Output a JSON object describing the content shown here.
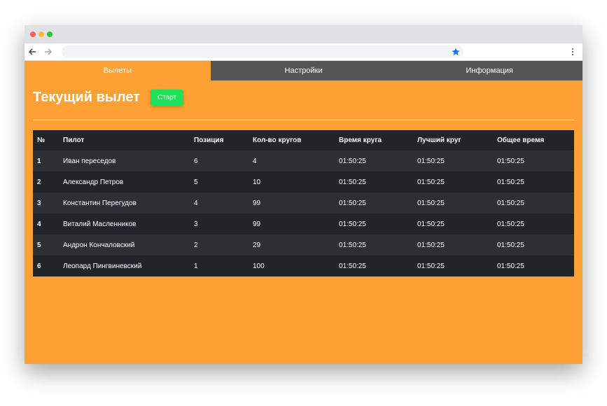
{
  "tabs": [
    "Вылеты",
    "Настройки",
    "Информация"
  ],
  "heading": "Текущий вылет",
  "button": "Старт",
  "table": {
    "headers": [
      "№",
      "Пилот",
      "Позиция",
      "Кол-во кругов",
      "Время круга",
      "Лучший круг",
      "Общее время"
    ],
    "rows": [
      [
        "1",
        "Иван переседов",
        "6",
        "4",
        "01:50:25",
        "01:50:25",
        "01:50:25"
      ],
      [
        "2",
        "Александр Петров",
        "5",
        "10",
        "01:50:25",
        "01:50:25",
        "01:50:25"
      ],
      [
        "3",
        "Константин Перегудов",
        "4",
        "99",
        "01:50:25",
        "01:50:25",
        "01:50:25"
      ],
      [
        "4",
        "Виталий Масленников",
        "3",
        "99",
        "01:50:25",
        "01:50:25",
        "01:50:25"
      ],
      [
        "5",
        "Андрон Кончаловский",
        "2",
        "29",
        "01:50:25",
        "01:50:25",
        "01:50:25"
      ],
      [
        "6",
        "Леопард Пингвиневский",
        "1",
        "100",
        "01:50:25",
        "01:50:25",
        "01:50:25"
      ]
    ]
  }
}
